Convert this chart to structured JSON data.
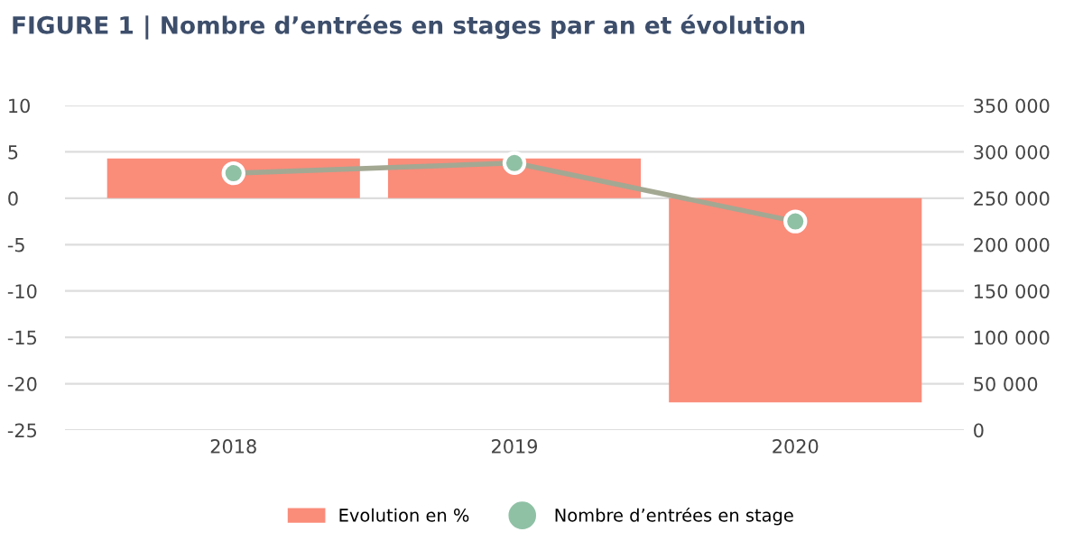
{
  "chart_data": {
    "type": "bar",
    "title": "FIGURE 1 | Nombre d’entrées en stages par an et évolution",
    "categories": [
      "2018",
      "2019",
      "2020"
    ],
    "series": [
      {
        "name": "Evolution en %",
        "color": "#fa8c7a",
        "values": [
          4.3,
          4.3,
          -22.0
        ]
      },
      {
        "name": "Nombre d’entrées en stage",
        "type": "line",
        "axis": "y2",
        "color": "#8fc1a5",
        "values": [
          277000,
          288000,
          225000
        ]
      }
    ],
    "ylim": [
      -25,
      10
    ],
    "yticks": [
      -25,
      -20,
      -15,
      -10,
      -5,
      0,
      5,
      10
    ],
    "y2lim": [
      0,
      350000
    ],
    "y2ticks": [
      {
        "value": 0,
        "label": "0"
      },
      {
        "value": 50000,
        "label": "50 000"
      },
      {
        "value": 100000,
        "label": "100 000"
      },
      {
        "value": 150000,
        "label": "150 000"
      },
      {
        "value": 200000,
        "label": "200 000"
      },
      {
        "value": 250000,
        "label": "250 000"
      },
      {
        "value": 300000,
        "label": "300 000"
      },
      {
        "value": 350000,
        "label": "350 000"
      }
    ],
    "grid": "y",
    "legend": "bottom",
    "marker": "circle"
  }
}
